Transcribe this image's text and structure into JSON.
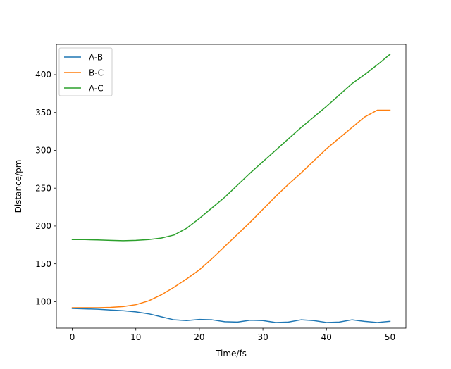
{
  "chart_data": {
    "type": "line",
    "xlabel": "Time/fs",
    "ylabel": "Distance/pm",
    "xlim": [
      -2.5,
      52.5
    ],
    "ylim": [
      65,
      440
    ],
    "xticks": [
      0,
      10,
      20,
      30,
      40,
      50
    ],
    "yticks": [
      100,
      150,
      200,
      250,
      300,
      350,
      400
    ],
    "grid": false,
    "legend_position": "top-left",
    "series": [
      {
        "name": "A-B",
        "color": "#1f77b4",
        "x": [
          0,
          2,
          4,
          6,
          8,
          10,
          12,
          14,
          16,
          18,
          20,
          22,
          24,
          26,
          28,
          30,
          32,
          34,
          36,
          38,
          40,
          42,
          44,
          46,
          48,
          50
        ],
        "y": [
          91,
          90.5,
          90,
          89,
          88,
          86.5,
          84,
          80,
          76,
          75,
          76.5,
          76,
          73.5,
          73,
          75.5,
          75,
          72.5,
          73,
          76,
          75,
          72.5,
          73,
          76,
          74,
          72.5,
          74
        ]
      },
      {
        "name": "B-C",
        "color": "#ff7f0e",
        "x": [
          0,
          2,
          4,
          6,
          8,
          10,
          12,
          14,
          16,
          18,
          20,
          22,
          24,
          26,
          28,
          30,
          32,
          34,
          36,
          38,
          40,
          42,
          44,
          46,
          48,
          50
        ],
        "y": [
          92,
          92,
          92,
          92.5,
          93.5,
          96,
          101,
          109,
          119,
          130,
          142,
          157,
          173,
          189,
          205,
          222,
          239,
          255,
          270,
          286,
          302,
          316,
          330,
          344,
          353,
          353
        ]
      },
      {
        "name": "A-C",
        "color": "#2ca02c",
        "x": [
          0,
          2,
          4,
          6,
          8,
          10,
          12,
          14,
          16,
          18,
          20,
          22,
          24,
          26,
          28,
          30,
          32,
          34,
          36,
          38,
          40,
          42,
          44,
          46,
          48,
          50
        ],
        "y": [
          182,
          182,
          181.5,
          181,
          180.5,
          181,
          182,
          184,
          188,
          197,
          210,
          224,
          238,
          254,
          270,
          285,
          300,
          315,
          330,
          344,
          358,
          373,
          388,
          400,
          413,
          427
        ]
      }
    ]
  }
}
